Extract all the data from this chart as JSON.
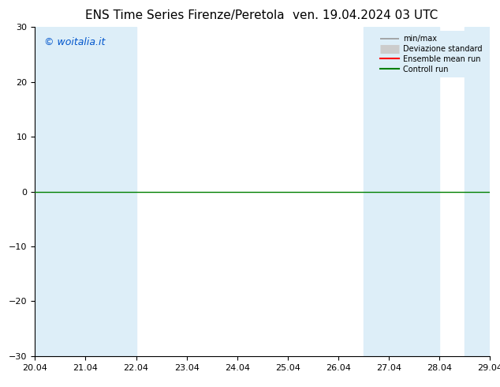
{
  "title": "ENS Time Series Firenze/Peretola",
  "title2": "ven. 19.04.2024 03 UTC",
  "watermark": "© woitalia.it",
  "ylim": [
    -30,
    30
  ],
  "yticks": [
    -30,
    -20,
    -10,
    0,
    10,
    20,
    30
  ],
  "xlim_start": 0,
  "xlim_end": 9,
  "xtick_labels": [
    "20.04",
    "21.04",
    "22.04",
    "23.04",
    "24.04",
    "25.04",
    "26.04",
    "27.04",
    "28.04",
    "29.04"
  ],
  "xtick_positions": [
    0,
    1,
    2,
    3,
    4,
    5,
    6,
    7,
    8,
    9
  ],
  "shaded_bands": [
    [
      0.0,
      0.5
    ],
    [
      0.5,
      1.0
    ],
    [
      1.0,
      2.0
    ],
    [
      6.5,
      7.0
    ],
    [
      7.0,
      7.5
    ],
    [
      7.5,
      8.0
    ],
    [
      8.5,
      9.0
    ]
  ],
  "band_color": "#ddeef8",
  "background_color": "#ffffff",
  "zero_line_color": "#008000",
  "legend_items": [
    {
      "label": "min/max",
      "color": "#999999",
      "style": "minmax"
    },
    {
      "label": "Deviazione standard",
      "color": "#cccccc",
      "style": "std"
    },
    {
      "label": "Ensemble mean run",
      "color": "#ff0000",
      "style": "line"
    },
    {
      "label": "Controll run",
      "color": "#008000",
      "style": "line"
    }
  ],
  "title_fontsize": 11,
  "tick_fontsize": 8,
  "watermark_fontsize": 9,
  "legend_bg_color": "#ddeef8"
}
